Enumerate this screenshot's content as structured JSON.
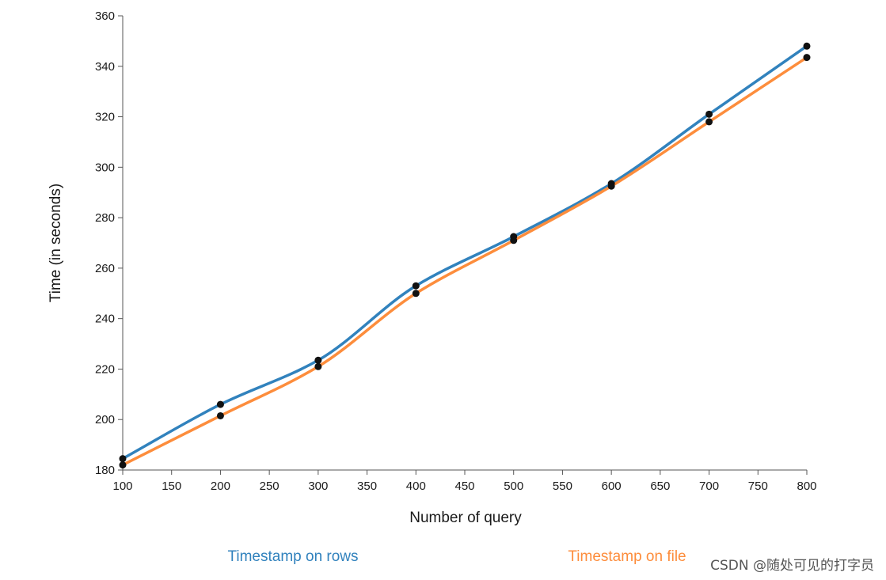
{
  "chart_data": {
    "type": "line",
    "title": "",
    "xlabel": "Number of query",
    "ylabel": "Time (in seconds)",
    "xlim": [
      100,
      800
    ],
    "ylim": [
      180,
      360
    ],
    "xticks": [
      100,
      150,
      200,
      250,
      300,
      350,
      400,
      450,
      500,
      550,
      600,
      650,
      700,
      750,
      800
    ],
    "yticks": [
      180,
      200,
      220,
      240,
      260,
      280,
      300,
      320,
      340,
      360
    ],
    "x": [
      100,
      200,
      300,
      400,
      500,
      600,
      700,
      800
    ],
    "series": [
      {
        "name": "Timestamp on rows",
        "color": "#3182bd",
        "values": [
          184.5,
          206,
          223.5,
          253,
          272.5,
          293.5,
          321,
          348
        ]
      },
      {
        "name": "Timestamp on file",
        "color": "#fd8d3c",
        "values": [
          182,
          201.5,
          221,
          250,
          271,
          292.5,
          318,
          343.5
        ]
      }
    ],
    "grid": false,
    "legend_position": "bottom",
    "marker_color": "#111111"
  },
  "watermark": "CSDN @随处可见的打字员"
}
